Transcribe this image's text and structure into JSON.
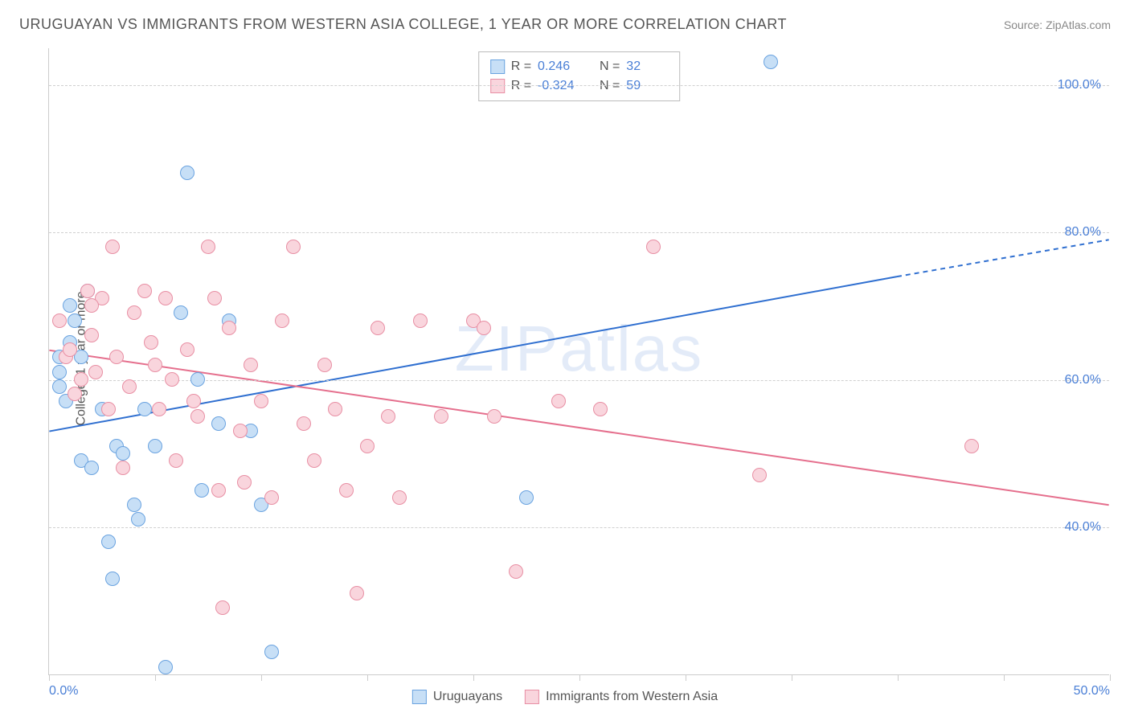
{
  "title": "URUGUAYAN VS IMMIGRANTS FROM WESTERN ASIA COLLEGE, 1 YEAR OR MORE CORRELATION CHART",
  "source": "Source: ZipAtlas.com",
  "watermark": "ZIPatlas",
  "y_axis_label": "College, 1 year or more",
  "chart": {
    "type": "scatter",
    "background_color": "#ffffff",
    "grid_color": "#d0d0d0",
    "axis_color": "#cccccc",
    "xlim": [
      0,
      50
    ],
    "ylim": [
      20,
      105
    ],
    "xtick_positions": [
      0,
      5,
      10,
      15,
      20,
      25,
      30,
      35,
      40,
      45,
      50
    ],
    "xtick_labeled": {
      "0": "0.0%",
      "50": "50.0%"
    },
    "ytick_positions": [
      40,
      60,
      80,
      100
    ],
    "ytick_labels": [
      "40.0%",
      "60.0%",
      "80.0%",
      "100.0%"
    ],
    "tick_label_color": "#4a7fd6",
    "series": [
      {
        "id": "uruguayans",
        "label": "Uruguayans",
        "marker_fill": "#c7dff6",
        "marker_stroke": "#6aa3e0",
        "line_color": "#2f6fd0",
        "line_width": 2,
        "R": "0.246",
        "N": "32",
        "trend": {
          "x1": 0,
          "y1": 53,
          "x2": 40,
          "y2": 74,
          "x2_ext": 50,
          "y2_ext": 79
        },
        "points": [
          {
            "x": 0.5,
            "y": 61
          },
          {
            "x": 0.5,
            "y": 59
          },
          {
            "x": 0.5,
            "y": 63
          },
          {
            "x": 0.8,
            "y": 57
          },
          {
            "x": 1.0,
            "y": 70
          },
          {
            "x": 1.2,
            "y": 68
          },
          {
            "x": 1.5,
            "y": 63
          },
          {
            "x": 1.5,
            "y": 49
          },
          {
            "x": 1.8,
            "y": 72
          },
          {
            "x": 2.0,
            "y": 48
          },
          {
            "x": 2.5,
            "y": 56
          },
          {
            "x": 2.8,
            "y": 38
          },
          {
            "x": 3.0,
            "y": 33
          },
          {
            "x": 3.2,
            "y": 51
          },
          {
            "x": 3.5,
            "y": 50
          },
          {
            "x": 4.0,
            "y": 43
          },
          {
            "x": 4.2,
            "y": 41
          },
          {
            "x": 4.5,
            "y": 56
          },
          {
            "x": 5.0,
            "y": 51
          },
          {
            "x": 5.5,
            "y": 21
          },
          {
            "x": 6.2,
            "y": 69
          },
          {
            "x": 6.5,
            "y": 88
          },
          {
            "x": 7.0,
            "y": 60
          },
          {
            "x": 7.2,
            "y": 45
          },
          {
            "x": 8.0,
            "y": 54
          },
          {
            "x": 8.5,
            "y": 68
          },
          {
            "x": 9.5,
            "y": 53
          },
          {
            "x": 10.0,
            "y": 43
          },
          {
            "x": 10.5,
            "y": 23
          },
          {
            "x": 22.5,
            "y": 44
          },
          {
            "x": 34.0,
            "y": 103
          },
          {
            "x": 1.0,
            "y": 65
          }
        ]
      },
      {
        "id": "wasia",
        "label": "Immigrants from Western Asia",
        "marker_fill": "#f9d5dd",
        "marker_stroke": "#e88fa4",
        "line_color": "#e56f8d",
        "line_width": 2,
        "R": "-0.324",
        "N": "59",
        "trend": {
          "x1": 0,
          "y1": 64,
          "x2": 50,
          "y2": 43,
          "x2_ext": 50,
          "y2_ext": 43
        },
        "points": [
          {
            "x": 0.5,
            "y": 68
          },
          {
            "x": 0.8,
            "y": 63
          },
          {
            "x": 1.0,
            "y": 64
          },
          {
            "x": 1.2,
            "y": 58
          },
          {
            "x": 1.5,
            "y": 60
          },
          {
            "x": 1.8,
            "y": 72
          },
          {
            "x": 2.0,
            "y": 66
          },
          {
            "x": 2.2,
            "y": 61
          },
          {
            "x": 2.5,
            "y": 71
          },
          {
            "x": 2.8,
            "y": 56
          },
          {
            "x": 3.0,
            "y": 78
          },
          {
            "x": 3.2,
            "y": 63
          },
          {
            "x": 3.5,
            "y": 48
          },
          {
            "x": 3.8,
            "y": 59
          },
          {
            "x": 4.0,
            "y": 69
          },
          {
            "x": 4.5,
            "y": 72
          },
          {
            "x": 5.0,
            "y": 62
          },
          {
            "x": 5.2,
            "y": 56
          },
          {
            "x": 5.5,
            "y": 71
          },
          {
            "x": 5.8,
            "y": 60
          },
          {
            "x": 6.0,
            "y": 49
          },
          {
            "x": 6.5,
            "y": 64
          },
          {
            "x": 7.0,
            "y": 55
          },
          {
            "x": 7.5,
            "y": 78
          },
          {
            "x": 8.0,
            "y": 45
          },
          {
            "x": 8.2,
            "y": 29
          },
          {
            "x": 8.5,
            "y": 67
          },
          {
            "x": 9.0,
            "y": 53
          },
          {
            "x": 9.5,
            "y": 62
          },
          {
            "x": 10.0,
            "y": 57
          },
          {
            "x": 10.5,
            "y": 44
          },
          {
            "x": 11.0,
            "y": 68
          },
          {
            "x": 11.5,
            "y": 78
          },
          {
            "x": 12.0,
            "y": 54
          },
          {
            "x": 12.5,
            "y": 49
          },
          {
            "x": 13.0,
            "y": 62
          },
          {
            "x": 13.5,
            "y": 56
          },
          {
            "x": 14.0,
            "y": 45
          },
          {
            "x": 14.5,
            "y": 31
          },
          {
            "x": 15.0,
            "y": 51
          },
          {
            "x": 15.5,
            "y": 67
          },
          {
            "x": 16.0,
            "y": 55
          },
          {
            "x": 16.5,
            "y": 44
          },
          {
            "x": 17.5,
            "y": 68
          },
          {
            "x": 18.5,
            "y": 55
          },
          {
            "x": 20.0,
            "y": 68
          },
          {
            "x": 20.5,
            "y": 67
          },
          {
            "x": 21.0,
            "y": 55
          },
          {
            "x": 22.0,
            "y": 34
          },
          {
            "x": 24.0,
            "y": 57
          },
          {
            "x": 26.0,
            "y": 56
          },
          {
            "x": 28.5,
            "y": 78
          },
          {
            "x": 33.5,
            "y": 47
          },
          {
            "x": 43.5,
            "y": 51
          },
          {
            "x": 7.8,
            "y": 71
          },
          {
            "x": 4.8,
            "y": 65
          },
          {
            "x": 2.0,
            "y": 70
          },
          {
            "x": 9.2,
            "y": 46
          },
          {
            "x": 6.8,
            "y": 57
          }
        ]
      }
    ]
  },
  "stats_legend": {
    "rows": [
      {
        "series": "uruguayans",
        "r_label": "R =",
        "r_val": "0.246",
        "n_label": "N =",
        "n_val": "32"
      },
      {
        "series": "wasia",
        "r_label": "R =",
        "r_val": "-0.324",
        "n_label": "N =",
        "n_val": "59"
      }
    ]
  },
  "bottom_legend": {
    "items": [
      {
        "series": "uruguayans",
        "label": "Uruguayans"
      },
      {
        "series": "wasia",
        "label": "Immigrants from Western Asia"
      }
    ]
  }
}
